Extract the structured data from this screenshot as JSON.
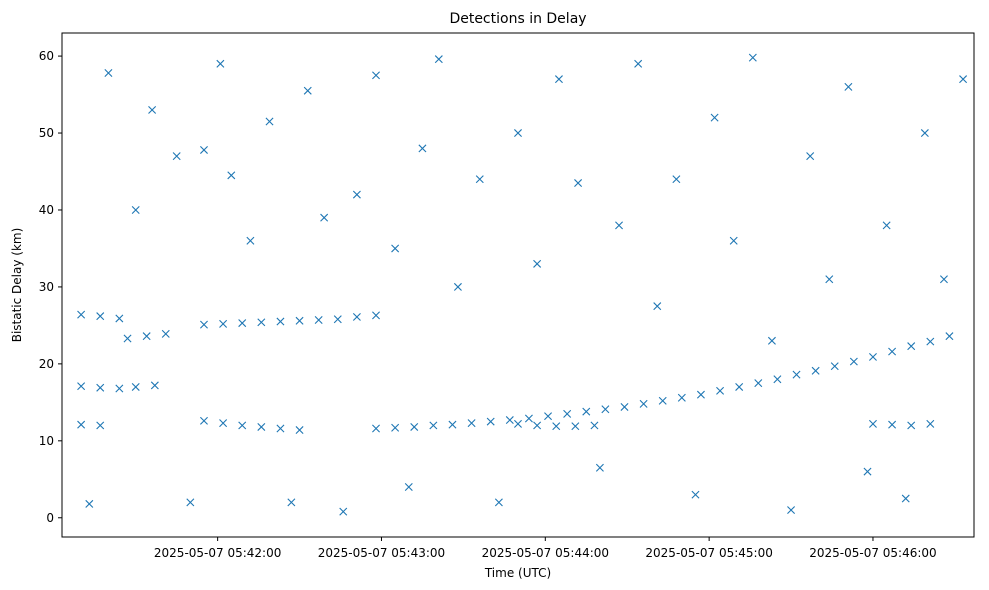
{
  "chart_data": {
    "type": "scatter",
    "title": "Detections in Delay",
    "xlabel": "Time (UTC)",
    "ylabel": "Bistatic Delay (km)",
    "marker": "x",
    "color": "#1f77b4",
    "grid": false,
    "xlim": [
      "2025-05-07 05:41:03",
      "2025-05-07 05:46:37"
    ],
    "ylim": [
      -2.5,
      63
    ],
    "x_ticks": [
      "2025-05-07 05:42:00",
      "2025-05-07 05:43:00",
      "2025-05-07 05:44:00",
      "2025-05-07 05:45:00",
      "2025-05-07 05:46:00"
    ],
    "y_ticks": [
      0,
      10,
      20,
      30,
      40,
      50,
      60
    ],
    "series": [
      {
        "values": [
          [
            "2025-05-07 05:42:58",
            11.6
          ],
          [
            "2025-05-07 05:43:05",
            11.7
          ],
          [
            "2025-05-07 05:43:12",
            11.8
          ],
          [
            "2025-05-07 05:43:19",
            12.0
          ],
          [
            "2025-05-07 05:43:26",
            12.1
          ],
          [
            "2025-05-07 05:43:33",
            12.3
          ],
          [
            "2025-05-07 05:43:40",
            12.5
          ],
          [
            "2025-05-07 05:43:47",
            12.7
          ],
          [
            "2025-05-07 05:43:54",
            12.9
          ],
          [
            "2025-05-07 05:44:01",
            13.2
          ],
          [
            "2025-05-07 05:44:08",
            13.5
          ],
          [
            "2025-05-07 05:44:15",
            13.8
          ],
          [
            "2025-05-07 05:44:22",
            14.1
          ],
          [
            "2025-05-07 05:44:29",
            14.4
          ],
          [
            "2025-05-07 05:44:36",
            14.8
          ],
          [
            "2025-05-07 05:44:43",
            15.2
          ],
          [
            "2025-05-07 05:44:50",
            15.6
          ],
          [
            "2025-05-07 05:44:57",
            16.0
          ],
          [
            "2025-05-07 05:45:04",
            16.5
          ],
          [
            "2025-05-07 05:45:11",
            17.0
          ],
          [
            "2025-05-07 05:45:18",
            17.5
          ],
          [
            "2025-05-07 05:45:25",
            18.0
          ],
          [
            "2025-05-07 05:45:32",
            18.6
          ],
          [
            "2025-05-07 05:45:39",
            19.1
          ],
          [
            "2025-05-07 05:45:46",
            19.7
          ],
          [
            "2025-05-07 05:45:53",
            20.3
          ],
          [
            "2025-05-07 05:46:00",
            20.9
          ],
          [
            "2025-05-07 05:46:07",
            21.6
          ],
          [
            "2025-05-07 05:46:14",
            22.3
          ],
          [
            "2025-05-07 05:46:21",
            22.9
          ],
          [
            "2025-05-07 05:46:28",
            23.6
          ],
          [
            "2025-05-07 05:41:10",
            26.4
          ],
          [
            "2025-05-07 05:41:17",
            26.2
          ],
          [
            "2025-05-07 05:41:24",
            25.9
          ],
          [
            "2025-05-07 05:41:10",
            17.1
          ],
          [
            "2025-05-07 05:41:17",
            16.9
          ],
          [
            "2025-05-07 05:41:24",
            16.8
          ],
          [
            "2025-05-07 05:41:10",
            12.1
          ],
          [
            "2025-05-07 05:41:17",
            12.0
          ],
          [
            "2025-05-07 05:41:27",
            23.3
          ],
          [
            "2025-05-07 05:41:34",
            23.6
          ],
          [
            "2025-05-07 05:41:41",
            23.9
          ],
          [
            "2025-05-07 05:41:30",
            17.0
          ],
          [
            "2025-05-07 05:41:37",
            17.2
          ],
          [
            "2025-05-07 05:41:55",
            25.1
          ],
          [
            "2025-05-07 05:42:02",
            25.2
          ],
          [
            "2025-05-07 05:42:09",
            25.3
          ],
          [
            "2025-05-07 05:42:16",
            25.4
          ],
          [
            "2025-05-07 05:42:23",
            25.5
          ],
          [
            "2025-05-07 05:42:30",
            25.6
          ],
          [
            "2025-05-07 05:42:37",
            25.7
          ],
          [
            "2025-05-07 05:42:44",
            25.8
          ],
          [
            "2025-05-07 05:42:51",
            26.1
          ],
          [
            "2025-05-07 05:42:58",
            26.3
          ],
          [
            "2025-05-07 05:41:55",
            12.6
          ],
          [
            "2025-05-07 05:42:02",
            12.3
          ],
          [
            "2025-05-07 05:42:09",
            12.0
          ],
          [
            "2025-05-07 05:42:16",
            11.8
          ],
          [
            "2025-05-07 05:42:23",
            11.6
          ],
          [
            "2025-05-07 05:42:30",
            11.4
          ],
          [
            "2025-05-07 05:43:50",
            12.2
          ],
          [
            "2025-05-07 05:43:57",
            12.0
          ],
          [
            "2025-05-07 05:44:04",
            11.9
          ],
          [
            "2025-05-07 05:44:11",
            11.9
          ],
          [
            "2025-05-07 05:44:18",
            12.0
          ],
          [
            "2025-05-07 05:46:00",
            12.2
          ],
          [
            "2025-05-07 05:46:07",
            12.1
          ],
          [
            "2025-05-07 05:46:14",
            12.0
          ],
          [
            "2025-05-07 05:46:21",
            12.2
          ],
          [
            "2025-05-07 05:41:13",
            1.8
          ],
          [
            "2025-05-07 05:41:20",
            57.8
          ],
          [
            "2025-05-07 05:41:30",
            40.0
          ],
          [
            "2025-05-07 05:41:36",
            53.0
          ],
          [
            "2025-05-07 05:41:45",
            47.0
          ],
          [
            "2025-05-07 05:41:50",
            2.0
          ],
          [
            "2025-05-07 05:41:55",
            47.8
          ],
          [
            "2025-05-07 05:42:01",
            59.0
          ],
          [
            "2025-05-07 05:42:05",
            44.5
          ],
          [
            "2025-05-07 05:42:12",
            36.0
          ],
          [
            "2025-05-07 05:42:19",
            51.5
          ],
          [
            "2025-05-07 05:42:27",
            2.0
          ],
          [
            "2025-05-07 05:42:33",
            55.5
          ],
          [
            "2025-05-07 05:42:39",
            39.0
          ],
          [
            "2025-05-07 05:42:46",
            0.8
          ],
          [
            "2025-05-07 05:42:51",
            42.0
          ],
          [
            "2025-05-07 05:42:58",
            57.5
          ],
          [
            "2025-05-07 05:43:05",
            35.0
          ],
          [
            "2025-05-07 05:43:10",
            4.0
          ],
          [
            "2025-05-07 05:43:15",
            48.0
          ],
          [
            "2025-05-07 05:43:21",
            59.6
          ],
          [
            "2025-05-07 05:43:28",
            30.0
          ],
          [
            "2025-05-07 05:43:36",
            44.0
          ],
          [
            "2025-05-07 05:43:43",
            2.0
          ],
          [
            "2025-05-07 05:43:50",
            50.0
          ],
          [
            "2025-05-07 05:43:57",
            33.0
          ],
          [
            "2025-05-07 05:44:05",
            57.0
          ],
          [
            "2025-05-07 05:44:12",
            43.5
          ],
          [
            "2025-05-07 05:44:20",
            6.5
          ],
          [
            "2025-05-07 05:44:27",
            38.0
          ],
          [
            "2025-05-07 05:44:34",
            59.0
          ],
          [
            "2025-05-07 05:44:41",
            27.5
          ],
          [
            "2025-05-07 05:44:48",
            44.0
          ],
          [
            "2025-05-07 05:44:55",
            3.0
          ],
          [
            "2025-05-07 05:45:02",
            52.0
          ],
          [
            "2025-05-07 05:45:09",
            36.0
          ],
          [
            "2025-05-07 05:45:16",
            59.8
          ],
          [
            "2025-05-07 05:45:23",
            23.0
          ],
          [
            "2025-05-07 05:45:30",
            1.0
          ],
          [
            "2025-05-07 05:45:37",
            47.0
          ],
          [
            "2025-05-07 05:45:44",
            31.0
          ],
          [
            "2025-05-07 05:45:51",
            56.0
          ],
          [
            "2025-05-07 05:45:58",
            6.0
          ],
          [
            "2025-05-07 05:46:05",
            38.0
          ],
          [
            "2025-05-07 05:46:12",
            2.5
          ],
          [
            "2025-05-07 05:46:19",
            50.0
          ],
          [
            "2025-05-07 05:46:26",
            31.0
          ],
          [
            "2025-05-07 05:46:33",
            57.0
          ]
        ]
      }
    ]
  }
}
